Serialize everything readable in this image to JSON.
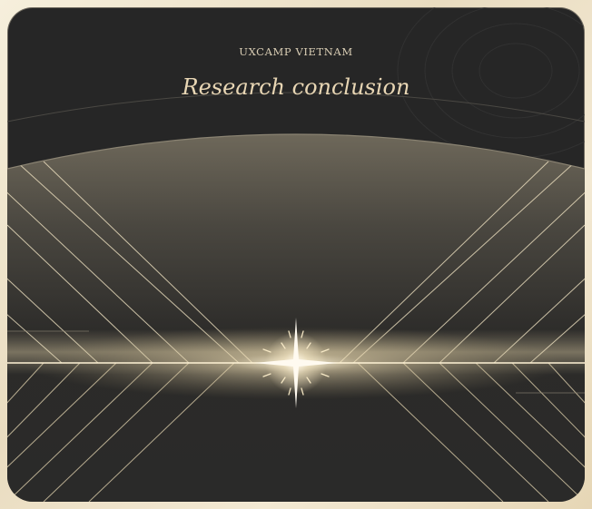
{
  "card": {
    "eyebrow": "UXCAMP VIETNAM",
    "title": "Research conclusion"
  },
  "colors": {
    "frame": "#efe6d2",
    "card_background": "#262626",
    "title_text": "#e8d6b4",
    "eyebrow_text": "#d9cdb4",
    "light_lines": "#f3e6c8"
  }
}
